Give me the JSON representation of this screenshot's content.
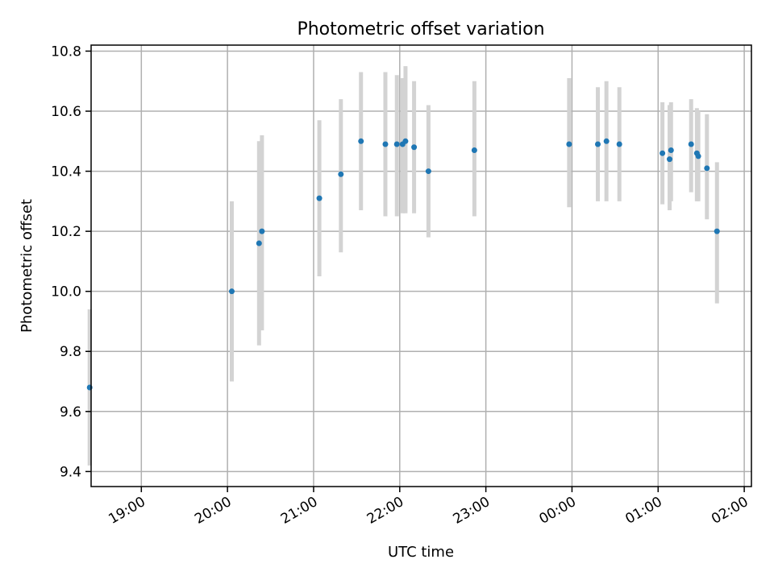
{
  "chart_data": {
    "type": "scatter",
    "title": "Photometric offset variation",
    "xlabel": "UTC time",
    "ylabel": "Photometric offset",
    "x_unit": "UTC",
    "xlim": [
      "18:25",
      "02:05"
    ],
    "x_tick_labels": [
      "19:00",
      "20:00",
      "21:00",
      "22:00",
      "23:00",
      "00:00",
      "01:00",
      "02:00"
    ],
    "ylim": [
      9.35,
      10.82
    ],
    "y_ticks": [
      9.4,
      9.6,
      9.8,
      10.0,
      10.2,
      10.4,
      10.6,
      10.8
    ],
    "y_tick_labels": [
      "9.4",
      "9.6",
      "9.8",
      "10.0",
      "10.2",
      "10.4",
      "10.6",
      "10.8"
    ],
    "grid": true,
    "colors": {
      "point": "#1f77b4",
      "error_bar": "#d3d3d3",
      "grid": "#b0b0b0"
    },
    "points": [
      {
        "x": "18:24",
        "y": 9.68,
        "y_low": 9.42,
        "y_high": 9.94
      },
      {
        "x": "20:03",
        "y": 10.0,
        "y_low": 9.7,
        "y_high": 10.3
      },
      {
        "x": "20:22",
        "y": 10.16,
        "y_low": 9.82,
        "y_high": 10.5
      },
      {
        "x": "20:24",
        "y": 10.2,
        "y_low": 9.87,
        "y_high": 10.52
      },
      {
        "x": "21:04",
        "y": 10.31,
        "y_low": 10.05,
        "y_high": 10.57
      },
      {
        "x": "21:19",
        "y": 10.39,
        "y_low": 10.13,
        "y_high": 10.64
      },
      {
        "x": "21:33",
        "y": 10.5,
        "y_low": 10.27,
        "y_high": 10.73
      },
      {
        "x": "21:50",
        "y": 10.49,
        "y_low": 10.25,
        "y_high": 10.73
      },
      {
        "x": "21:58",
        "y": 10.49,
        "y_low": 10.25,
        "y_high": 10.72
      },
      {
        "x": "22:02",
        "y": 10.49,
        "y_low": 10.26,
        "y_high": 10.71
      },
      {
        "x": "22:04",
        "y": 10.5,
        "y_low": 10.26,
        "y_high": 10.75
      },
      {
        "x": "22:10",
        "y": 10.48,
        "y_low": 10.26,
        "y_high": 10.7
      },
      {
        "x": "22:20",
        "y": 10.4,
        "y_low": 10.18,
        "y_high": 10.62
      },
      {
        "x": "22:52",
        "y": 10.47,
        "y_low": 10.25,
        "y_high": 10.7
      },
      {
        "x": "23:58",
        "y": 10.49,
        "y_low": 10.28,
        "y_high": 10.71
      },
      {
        "x": "00:18",
        "y": 10.49,
        "y_low": 10.3,
        "y_high": 10.68
      },
      {
        "x": "00:24",
        "y": 10.5,
        "y_low": 10.3,
        "y_high": 10.7
      },
      {
        "x": "00:33",
        "y": 10.49,
        "y_low": 10.3,
        "y_high": 10.68
      },
      {
        "x": "01:03",
        "y": 10.46,
        "y_low": 10.29,
        "y_high": 10.63
      },
      {
        "x": "01:08",
        "y": 10.44,
        "y_low": 10.27,
        "y_high": 10.62
      },
      {
        "x": "01:09",
        "y": 10.47,
        "y_low": 10.3,
        "y_high": 10.63
      },
      {
        "x": "01:23",
        "y": 10.49,
        "y_low": 10.33,
        "y_high": 10.64
      },
      {
        "x": "01:27",
        "y": 10.46,
        "y_low": 10.3,
        "y_high": 10.61
      },
      {
        "x": "01:28",
        "y": 10.45,
        "y_low": 10.3,
        "y_high": 10.6
      },
      {
        "x": "01:34",
        "y": 10.41,
        "y_low": 10.24,
        "y_high": 10.59
      },
      {
        "x": "01:41",
        "y": 10.2,
        "y_low": 9.96,
        "y_high": 10.43
      }
    ]
  }
}
